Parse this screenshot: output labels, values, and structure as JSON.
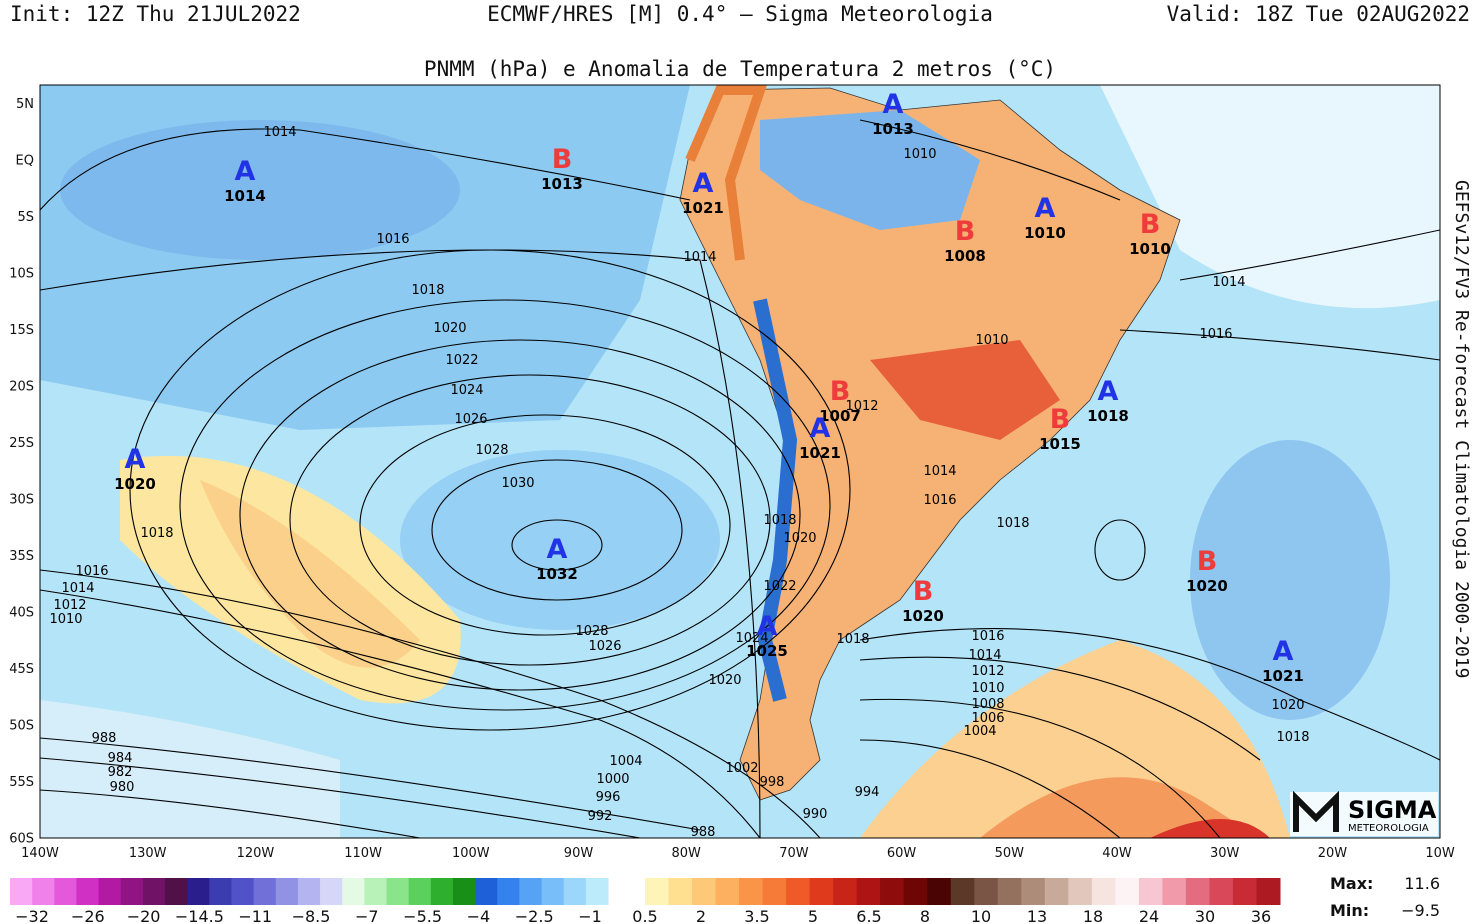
{
  "header": {
    "init": "Init: 12Z Thu 21JUL2022",
    "model": "ECMWF/HRES [M] 0.4° — Sigma Meteorologia",
    "valid": "Valid: 18Z Tue 02AUG2022"
  },
  "subtitle": "PNMM (hPa) e Anomalia de Temperatura 2 metros (°C)",
  "side_label": "GEFSv12/FV3 Re-forecast Climatologia 2000-2019",
  "lat_labels": [
    "5N",
    "EQ",
    "5S",
    "10S",
    "15S",
    "20S",
    "25S",
    "30S",
    "35S",
    "40S",
    "45S",
    "50S",
    "55S",
    "60S"
  ],
  "lon_labels": [
    "140W",
    "130W",
    "120W",
    "110W",
    "100W",
    "90W",
    "80W",
    "70W",
    "60W",
    "50W",
    "40W",
    "30W",
    "20W",
    "10W"
  ],
  "centers": [
    {
      "letter": "A",
      "value": "1014"
    },
    {
      "letter": "B",
      "value": "1013"
    },
    {
      "letter": "A",
      "value": "1013"
    },
    {
      "letter": "A",
      "value": "1021"
    },
    {
      "letter": "B",
      "value": "1008"
    },
    {
      "letter": "A",
      "value": "1010"
    },
    {
      "letter": "B",
      "value": "1010"
    },
    {
      "letter": "B",
      "value": "1007"
    },
    {
      "letter": "A",
      "value": "1021"
    },
    {
      "letter": "A",
      "value": "1018"
    },
    {
      "letter": "B",
      "value": "1015"
    },
    {
      "letter": "A",
      "value": "1020"
    },
    {
      "letter": "A",
      "value": "1032"
    },
    {
      "letter": "B",
      "value": "1020"
    },
    {
      "letter": "B",
      "value": "1020"
    },
    {
      "letter": "A",
      "value": "1025"
    },
    {
      "letter": "A",
      "value": "1021"
    }
  ],
  "isobar_labels": [
    "1014",
    "1016",
    "1018",
    "1020",
    "1022",
    "1024",
    "1026",
    "1028",
    "1030",
    "1018",
    "1016",
    "1014",
    "1012",
    "1010",
    "1028",
    "1026",
    "1014",
    "1010",
    "1014",
    "1016",
    "1010",
    "1012",
    "1014",
    "1016",
    "1018",
    "1018",
    "1020",
    "1022",
    "1024",
    "1018",
    "1020",
    "1016",
    "1014",
    "1012",
    "1010",
    "1008",
    "1006",
    "1004",
    "988",
    "984",
    "982",
    "980",
    "1004",
    "1000",
    "996",
    "992",
    "1002",
    "998",
    "994",
    "990",
    "988",
    "1020",
    "1018"
  ],
  "colorbar": {
    "negative": [
      "−32",
      "−26",
      "−20",
      "−14.5",
      "−11",
      "−8.5",
      "−7",
      "−5.5",
      "−4",
      "−2.5",
      "−1"
    ],
    "positive": [
      "0.5",
      "2",
      "3.5",
      "5",
      "6.5",
      "8",
      "10",
      "13",
      "18",
      "24",
      "30",
      "36"
    ]
  },
  "stats": {
    "max_label": "Max:",
    "max_value": "11.6",
    "min_label": "Min:",
    "min_value": "−9.5"
  },
  "logo": {
    "name": "SIGMA",
    "sub": "METEOROLOGIA"
  }
}
